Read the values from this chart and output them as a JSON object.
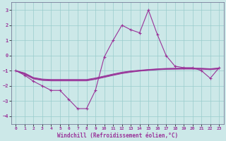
{
  "xlabel": "Windchill (Refroidissement éolien,°C)",
  "xlim": [
    -0.5,
    23.5
  ],
  "ylim": [
    -4.5,
    3.5
  ],
  "yticks": [
    -4,
    -3,
    -2,
    -1,
    0,
    1,
    2,
    3
  ],
  "xticks": [
    0,
    1,
    2,
    3,
    4,
    5,
    6,
    7,
    8,
    9,
    10,
    11,
    12,
    13,
    14,
    15,
    16,
    17,
    18,
    19,
    20,
    21,
    22,
    23
  ],
  "bg_color": "#cce8e8",
  "grid_color": "#99cccc",
  "line_color": "#993399",
  "main_x": [
    0,
    1,
    2,
    3,
    4,
    5,
    6,
    7,
    8,
    9,
    10,
    11,
    12,
    13,
    14,
    15,
    16,
    17,
    18,
    19,
    20,
    21,
    22,
    23
  ],
  "main_y": [
    -1.0,
    -1.3,
    -1.7,
    -2.0,
    -2.3,
    -2.3,
    -2.9,
    -3.5,
    -3.5,
    -2.3,
    -0.1,
    1.0,
    2.0,
    1.7,
    1.5,
    3.0,
    1.4,
    0.0,
    -0.7,
    -0.8,
    -0.8,
    -1.0,
    -1.5,
    -0.8
  ],
  "flat_lines": [
    [
      -1.0,
      -1.15,
      -1.45,
      -1.55,
      -1.58,
      -1.58,
      -1.58,
      -1.58,
      -1.58,
      -1.48,
      -1.35,
      -1.22,
      -1.1,
      -1.02,
      -0.97,
      -0.92,
      -0.88,
      -0.85,
      -0.84,
      -0.83,
      -0.83,
      -0.84,
      -0.87,
      -0.82
    ],
    [
      -1.0,
      -1.18,
      -1.48,
      -1.58,
      -1.61,
      -1.61,
      -1.61,
      -1.61,
      -1.61,
      -1.51,
      -1.38,
      -1.25,
      -1.13,
      -1.04,
      -0.99,
      -0.94,
      -0.9,
      -0.87,
      -0.86,
      -0.85,
      -0.85,
      -0.86,
      -0.89,
      -0.84
    ],
    [
      -1.0,
      -1.21,
      -1.51,
      -1.61,
      -1.64,
      -1.64,
      -1.64,
      -1.64,
      -1.64,
      -1.54,
      -1.41,
      -1.28,
      -1.16,
      -1.07,
      -1.01,
      -0.96,
      -0.92,
      -0.89,
      -0.88,
      -0.87,
      -0.87,
      -0.88,
      -0.91,
      -0.86
    ],
    [
      -1.0,
      -1.24,
      -1.54,
      -1.64,
      -1.67,
      -1.67,
      -1.67,
      -1.67,
      -1.67,
      -1.57,
      -1.44,
      -1.31,
      -1.19,
      -1.1,
      -1.03,
      -0.98,
      -0.94,
      -0.91,
      -0.9,
      -0.89,
      -0.89,
      -0.9,
      -0.93,
      -0.88
    ]
  ]
}
